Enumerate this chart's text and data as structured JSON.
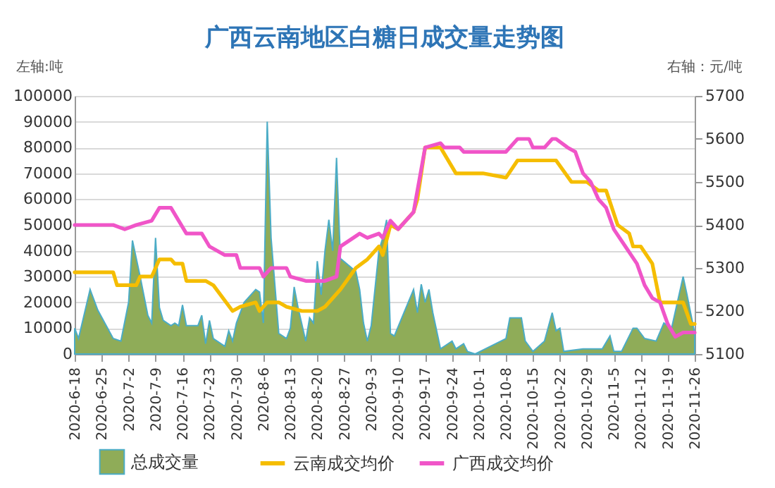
{
  "chart_data": {
    "type": "line",
    "title": "广西云南地区白糖日成交量走势图",
    "ylabel": "左轴:吨",
    "y2label": "右轴：元/吨",
    "xlim": [
      "2020-06-18",
      "2020-11-26"
    ],
    "xticks": [
      {
        "value": "2020-06-18",
        "label": "2020-6-18"
      },
      {
        "value": "2020-06-25",
        "label": "2020-6-25"
      },
      {
        "value": "2020-07-02",
        "label": "2020-7-2"
      },
      {
        "value": "2020-07-09",
        "label": "2020-7-9"
      },
      {
        "value": "2020-07-16",
        "label": "2020-7-16"
      },
      {
        "value": "2020-07-23",
        "label": "2020-7-23"
      },
      {
        "value": "2020-07-30",
        "label": "2020-7-30"
      },
      {
        "value": "2020-08-06",
        "label": "2020-8-6"
      },
      {
        "value": "2020-08-13",
        "label": "2020-8-13"
      },
      {
        "value": "2020-08-20",
        "label": "2020-8-20"
      },
      {
        "value": "2020-08-27",
        "label": "2020-8-27"
      },
      {
        "value": "2020-09-03",
        "label": "2020-9-3"
      },
      {
        "value": "2020-09-10",
        "label": "2020-9-10"
      },
      {
        "value": "2020-09-17",
        "label": "2020-9-17"
      },
      {
        "value": "2020-09-24",
        "label": "2020-9-24"
      },
      {
        "value": "2020-10-01",
        "label": "2020-10-1"
      },
      {
        "value": "2020-10-08",
        "label": "2020-10-8"
      },
      {
        "value": "2020-10-15",
        "label": "2020-10-15"
      },
      {
        "value": "2020-10-22",
        "label": "2020-10-22"
      },
      {
        "value": "2020-10-29",
        "label": "2020-10-29"
      },
      {
        "value": "2020-11-05",
        "label": "2020-11-5"
      },
      {
        "value": "2020-11-12",
        "label": "2020-11-12"
      },
      {
        "value": "2020-11-19",
        "label": "2020-11-19"
      },
      {
        "value": "2020-11-26",
        "label": "2020-11-26"
      }
    ],
    "ylim": [
      0,
      100000
    ],
    "yticks": [
      0,
      10000,
      20000,
      30000,
      40000,
      50000,
      60000,
      70000,
      80000,
      90000,
      100000
    ],
    "y2lim": [
      5100,
      5700
    ],
    "y2ticks": [
      5100,
      5200,
      5300,
      5400,
      5500,
      5600,
      5700
    ],
    "grid": "y",
    "legend": "bottom",
    "line_style": "solid",
    "marker": "none",
    "series": [
      {
        "name": "总成交量",
        "type": "area",
        "color": "#8fac58",
        "x": [
          "2020-06-18",
          "2020-06-19",
          "2020-06-22",
          "2020-06-24",
          "2020-06-28",
          "2020-06-30",
          "2020-07-02",
          "2020-07-03",
          "2020-07-05",
          "2020-07-07",
          "2020-07-08",
          "2020-07-09",
          "2020-07-10",
          "2020-07-11",
          "2020-07-13",
          "2020-07-14",
          "2020-07-15",
          "2020-07-16",
          "2020-07-17",
          "2020-07-20",
          "2020-07-21",
          "2020-07-22",
          "2020-07-23",
          "2020-07-24",
          "2020-07-27",
          "2020-07-28",
          "2020-07-29",
          "2020-07-30",
          "2020-08-01",
          "2020-08-04",
          "2020-08-05",
          "2020-08-06",
          "2020-08-07",
          "2020-08-08",
          "2020-08-10",
          "2020-08-12",
          "2020-08-13",
          "2020-08-14",
          "2020-08-15",
          "2020-08-17",
          "2020-08-18",
          "2020-08-19",
          "2020-08-20",
          "2020-08-21",
          "2020-08-22",
          "2020-08-23",
          "2020-08-24",
          "2020-08-25",
          "2020-08-26",
          "2020-08-30",
          "2020-08-31",
          "2020-09-01",
          "2020-09-02",
          "2020-09-03",
          "2020-09-05",
          "2020-09-06",
          "2020-09-07",
          "2020-09-08",
          "2020-09-09",
          "2020-09-14",
          "2020-09-15",
          "2020-09-16",
          "2020-09-17",
          "2020-09-18",
          "2020-09-19",
          "2020-09-21",
          "2020-09-22",
          "2020-09-24",
          "2020-09-25",
          "2020-09-27",
          "2020-09-28",
          "2020-09-30",
          "2020-10-08",
          "2020-10-09",
          "2020-10-12",
          "2020-10-13",
          "2020-10-15",
          "2020-10-18",
          "2020-10-20",
          "2020-10-21",
          "2020-10-22",
          "2020-10-23",
          "2020-10-28",
          "2020-11-02",
          "2020-11-04",
          "2020-11-05",
          "2020-11-07",
          "2020-11-10",
          "2020-11-11",
          "2020-11-13",
          "2020-11-16",
          "2020-11-18",
          "2020-11-20",
          "2020-11-23",
          "2020-11-24",
          "2020-11-26"
        ],
        "values": [
          10000,
          6000,
          25000,
          17000,
          6000,
          5000,
          20000,
          44000,
          30000,
          15000,
          12000,
          45000,
          18000,
          13000,
          11000,
          12000,
          11000,
          19000,
          11000,
          11000,
          15000,
          4000,
          13000,
          6000,
          3000,
          9000,
          5000,
          12000,
          20000,
          25000,
          24000,
          12000,
          90000,
          45000,
          8000,
          6000,
          10000,
          26000,
          18000,
          5000,
          14000,
          12000,
          36000,
          23000,
          40000,
          52000,
          40000,
          76000,
          37000,
          32000,
          25000,
          12000,
          5000,
          11000,
          40000,
          45000,
          52000,
          8000,
          7000,
          25000,
          16000,
          27000,
          20000,
          25000,
          16000,
          2000,
          3000,
          5000,
          2000,
          4000,
          1000,
          0,
          6000,
          14000,
          14000,
          5000,
          1000,
          5000,
          16000,
          9000,
          10000,
          1000,
          2000,
          2000,
          7000,
          1000,
          1000,
          10000,
          10000,
          6000,
          5000,
          12000,
          10000,
          30000,
          23000,
          8000
        ]
      },
      {
        "name": "云南成交均价",
        "axis": "y2",
        "color": "#f5bd00",
        "x": [
          "2020-06-18",
          "2020-06-28",
          "2020-06-29",
          "2020-07-04",
          "2020-07-05",
          "2020-07-08",
          "2020-07-10",
          "2020-07-13",
          "2020-07-14",
          "2020-07-16",
          "2020-07-17",
          "2020-07-22",
          "2020-07-24",
          "2020-07-29",
          "2020-07-31",
          "2020-08-04",
          "2020-08-05",
          "2020-08-07",
          "2020-08-10",
          "2020-08-12",
          "2020-08-16",
          "2020-08-20",
          "2020-08-22",
          "2020-08-26",
          "2020-08-30",
          "2020-09-02",
          "2020-09-03",
          "2020-09-05",
          "2020-09-06",
          "2020-09-08",
          "2020-09-10",
          "2020-09-14",
          "2020-09-15",
          "2020-09-17",
          "2020-09-21",
          "2020-09-25",
          "2020-10-02",
          "2020-10-08",
          "2020-10-11",
          "2020-10-21",
          "2020-10-25",
          "2020-10-29",
          "2020-11-01",
          "2020-11-03",
          "2020-11-06",
          "2020-11-09",
          "2020-11-10",
          "2020-11-12",
          "2020-11-15",
          "2020-11-17",
          "2020-11-23",
          "2020-11-25",
          "2020-11-26"
        ],
        "values": [
          5290,
          5290,
          5260,
          5260,
          5280,
          5280,
          5320,
          5320,
          5310,
          5310,
          5270,
          5270,
          5260,
          5200,
          5210,
          5220,
          5200,
          5220,
          5220,
          5210,
          5200,
          5200,
          5210,
          5250,
          5300,
          5320,
          5330,
          5350,
          5330,
          5400,
          5390,
          5430,
          5460,
          5580,
          5580,
          5520,
          5520,
          5510,
          5550,
          5550,
          5500,
          5500,
          5480,
          5480,
          5400,
          5380,
          5350,
          5350,
          5310,
          5220,
          5220,
          5170,
          5170
        ]
      },
      {
        "name": "广西成交均价",
        "axis": "y2",
        "color": "#f055c8",
        "x": [
          "2020-06-18",
          "2020-06-28",
          "2020-07-01",
          "2020-07-04",
          "2020-07-08",
          "2020-07-10",
          "2020-07-13",
          "2020-07-15",
          "2020-07-17",
          "2020-07-21",
          "2020-07-23",
          "2020-07-27",
          "2020-07-30",
          "2020-07-31",
          "2020-08-05",
          "2020-08-06",
          "2020-08-08",
          "2020-08-12",
          "2020-08-13",
          "2020-08-17",
          "2020-08-22",
          "2020-08-25",
          "2020-08-26",
          "2020-08-31",
          "2020-09-02",
          "2020-09-05",
          "2020-09-06",
          "2020-09-08",
          "2020-09-10",
          "2020-09-14",
          "2020-09-17",
          "2020-09-21",
          "2020-09-22",
          "2020-09-26",
          "2020-09-27",
          "2020-10-08",
          "2020-10-11",
          "2020-10-14",
          "2020-10-15",
          "2020-10-18",
          "2020-10-20",
          "2020-10-21",
          "2020-10-24",
          "2020-10-26",
          "2020-10-28",
          "2020-10-30",
          "2020-11-01",
          "2020-11-03",
          "2020-11-05",
          "2020-11-08",
          "2020-11-11",
          "2020-11-13",
          "2020-11-15",
          "2020-11-17",
          "2020-11-19",
          "2020-11-21",
          "2020-11-23",
          "2020-11-26"
        ],
        "values": [
          5400,
          5400,
          5390,
          5400,
          5410,
          5440,
          5440,
          5410,
          5380,
          5380,
          5350,
          5330,
          5330,
          5300,
          5300,
          5280,
          5300,
          5300,
          5280,
          5270,
          5270,
          5280,
          5350,
          5380,
          5370,
          5380,
          5370,
          5410,
          5390,
          5430,
          5580,
          5590,
          5580,
          5580,
          5570,
          5570,
          5600,
          5600,
          5580,
          5580,
          5600,
          5600,
          5580,
          5570,
          5520,
          5500,
          5460,
          5440,
          5390,
          5350,
          5310,
          5260,
          5230,
          5220,
          5170,
          5140,
          5150,
          5150
        ]
      }
    ]
  }
}
